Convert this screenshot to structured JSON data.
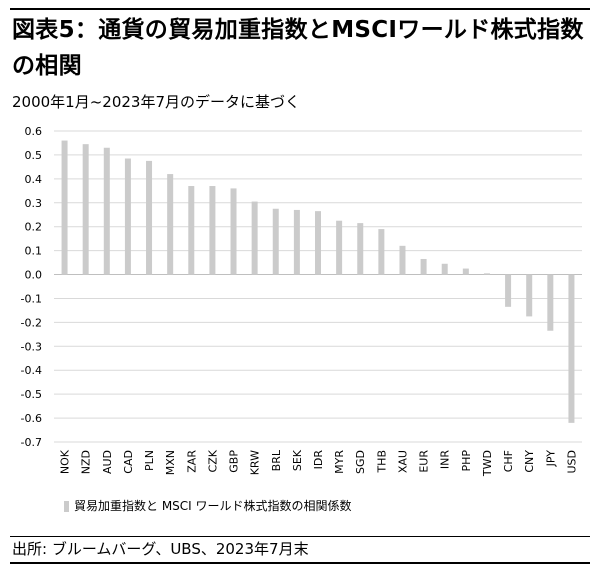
{
  "header": {
    "title": "図表5：通貨の貿易加重指数とMSCIワールド株式指数の相関",
    "subtitle": "2000年1月~2023年7月のデータに基づく"
  },
  "legend": {
    "label": "貿易加重指数と MSCI ワールド株式指数の相関係数"
  },
  "footer": {
    "source": "出所: ブルームバーグ、UBS、2023年7月末"
  },
  "colors": {
    "bar": "#cbcbcb",
    "grid": "#d9d9d9",
    "zero_line": "#bfbfbf"
  },
  "chart_data": {
    "type": "bar",
    "title": "",
    "xlabel": "",
    "ylabel": "",
    "ylim": [
      -0.7,
      0.6
    ],
    "yticks": [
      "0.6",
      "0.5",
      "0.4",
      "0.3",
      "0.2",
      "0.1",
      "0.0",
      "-0.1",
      "-0.2",
      "-0.3",
      "-0.4",
      "-0.5",
      "-0.6",
      "-0.7"
    ],
    "grid": true,
    "legend_position": "bottom-left",
    "categories": [
      "NOK",
      "NZD",
      "AUD",
      "CAD",
      "PLN",
      "MXN",
      "ZAR",
      "CZK",
      "GBP",
      "KRW",
      "BRL",
      "SEK",
      "IDR",
      "MYR",
      "SGD",
      "THB",
      "XAU",
      "EUR",
      "INR",
      "PHP",
      "TWD",
      "CHF",
      "CNY",
      "JPY",
      "USD"
    ],
    "series": [
      {
        "name": "貿易加重指数と MSCI ワールド株式指数の相関係数",
        "values": [
          0.56,
          0.545,
          0.53,
          0.485,
          0.475,
          0.42,
          0.37,
          0.37,
          0.36,
          0.305,
          0.275,
          0.27,
          0.265,
          0.225,
          0.215,
          0.19,
          0.12,
          0.065,
          0.045,
          0.025,
          0.005,
          -0.135,
          -0.175,
          -0.235,
          -0.62
        ]
      }
    ]
  }
}
